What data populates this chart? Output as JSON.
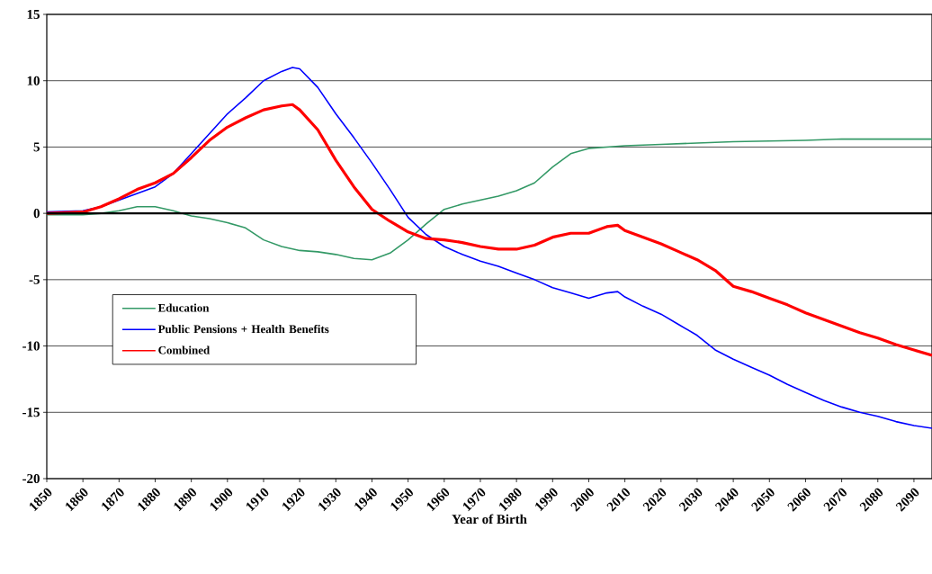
{
  "chart_data": {
    "type": "line",
    "xlabel": "Year of Birth",
    "xlim": [
      1850,
      2095
    ],
    "xticks": [
      1850,
      1860,
      1870,
      1880,
      1890,
      1900,
      1910,
      1920,
      1930,
      1940,
      1950,
      1960,
      1970,
      1980,
      1990,
      2000,
      2010,
      2020,
      2030,
      2040,
      2050,
      2060,
      2070,
      2080,
      2090
    ],
    "ylim": [
      -20,
      15
    ],
    "yticks": [
      -20,
      -15,
      -10,
      -5,
      0,
      5,
      10,
      15
    ],
    "grid": "y",
    "legend": "bottom left",
    "marker": "none",
    "line_style": "solid",
    "ref_lines": [
      {
        "axis": "y",
        "value": 0,
        "color": "#000000"
      }
    ],
    "series": [
      {
        "name": "Education",
        "color": "#339966",
        "x": [
          1850,
          1860,
          1865,
          1870,
          1875,
          1880,
          1885,
          1890,
          1895,
          1900,
          1905,
          1910,
          1915,
          1920,
          1925,
          1930,
          1935,
          1940,
          1945,
          1950,
          1955,
          1960,
          1965,
          1970,
          1975,
          1980,
          1985,
          1990,
          1995,
          2000,
          2005,
          2010,
          2020,
          2030,
          2040,
          2050,
          2060,
          2070,
          2080,
          2095
        ],
        "values": [
          -0.1,
          -0.1,
          0,
          0.2,
          0.5,
          0.5,
          0.2,
          -0.2,
          -0.4,
          -0.7,
          -1.1,
          -2.0,
          -2.5,
          -2.8,
          -2.9,
          -3.1,
          -3.4,
          -3.5,
          -3.0,
          -2.0,
          -0.8,
          0.3,
          0.7,
          1.0,
          1.3,
          1.7,
          2.3,
          3.5,
          4.5,
          4.9,
          5.0,
          5.1,
          5.2,
          5.3,
          5.4,
          5.45,
          5.5,
          5.6,
          5.6,
          5.6
        ]
      },
      {
        "name": "Public Pensions + Health Benefits",
        "color": "#0000ff",
        "x": [
          1850,
          1860,
          1865,
          1870,
          1875,
          1880,
          1885,
          1890,
          1895,
          1900,
          1905,
          1910,
          1915,
          1918,
          1920,
          1925,
          1930,
          1935,
          1940,
          1945,
          1950,
          1955,
          1960,
          1965,
          1970,
          1975,
          1980,
          1985,
          1990,
          1995,
          2000,
          2005,
          2008,
          2010,
          2015,
          2020,
          2025,
          2030,
          2035,
          2040,
          2045,
          2050,
          2055,
          2060,
          2065,
          2070,
          2075,
          2080,
          2085,
          2090,
          2095
        ],
        "values": [
          0.1,
          0.2,
          0.5,
          1.0,
          1.5,
          2.0,
          3.0,
          4.5,
          6.0,
          7.5,
          8.7,
          10.0,
          10.7,
          11.0,
          10.9,
          9.5,
          7.5,
          5.7,
          3.8,
          1.8,
          -0.3,
          -1.6,
          -2.5,
          -3.1,
          -3.6,
          -4.0,
          -4.5,
          -5.0,
          -5.6,
          -6.0,
          -6.4,
          -6.0,
          -5.9,
          -6.3,
          -7.0,
          -7.6,
          -8.4,
          -9.2,
          -10.3,
          -11.0,
          -11.6,
          -12.2,
          -12.9,
          -13.5,
          -14.1,
          -14.6,
          -15.0,
          -15.3,
          -15.7,
          -16.0,
          -16.2
        ]
      },
      {
        "name": "Combined",
        "color": "#ff0000",
        "x": [
          1850,
          1860,
          1865,
          1870,
          1875,
          1880,
          1885,
          1890,
          1895,
          1900,
          1905,
          1910,
          1915,
          1918,
          1920,
          1925,
          1930,
          1935,
          1940,
          1945,
          1950,
          1955,
          1960,
          1965,
          1970,
          1975,
          1980,
          1985,
          1990,
          1995,
          2000,
          2005,
          2008,
          2010,
          2015,
          2020,
          2025,
          2030,
          2035,
          2040,
          2045,
          2050,
          2055,
          2060,
          2065,
          2070,
          2075,
          2080,
          2085,
          2090,
          2095
        ],
        "values": [
          0,
          0.1,
          0.5,
          1.1,
          1.8,
          2.3,
          3.0,
          4.2,
          5.5,
          6.5,
          7.2,
          7.8,
          8.1,
          8.2,
          7.8,
          6.3,
          4.0,
          2.0,
          0.3,
          -0.6,
          -1.4,
          -1.9,
          -2.0,
          -2.2,
          -2.5,
          -2.7,
          -2.7,
          -2.4,
          -1.8,
          -1.5,
          -1.5,
          -1.0,
          -0.9,
          -1.3,
          -1.8,
          -2.3,
          -2.9,
          -3.5,
          -4.3,
          -5.5,
          -5.9,
          -6.4,
          -6.9,
          -7.5,
          -8.0,
          -8.5,
          -9.0,
          -9.4,
          -9.9,
          -10.3,
          -10.7
        ]
      }
    ]
  }
}
